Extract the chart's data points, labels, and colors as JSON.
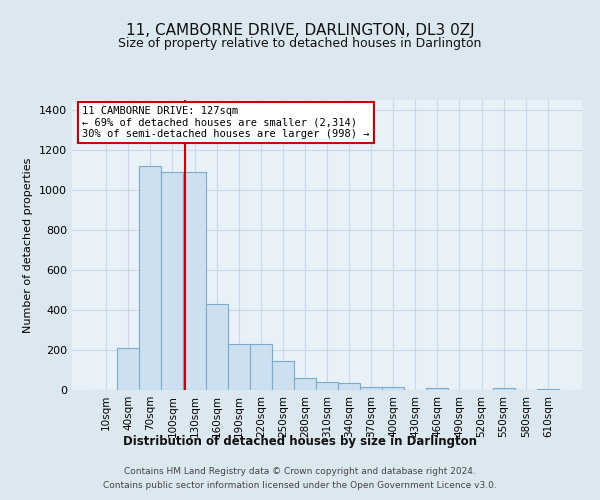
{
  "title": "11, CAMBORNE DRIVE, DARLINGTON, DL3 0ZJ",
  "subtitle": "Size of property relative to detached houses in Darlington",
  "xlabel": "Distribution of detached houses by size in Darlington",
  "ylabel": "Number of detached properties",
  "footer_line1": "Contains HM Land Registry data © Crown copyright and database right 2024.",
  "footer_line2": "Contains public sector information licensed under the Open Government Licence v3.0.",
  "bar_labels": [
    "10sqm",
    "40sqm",
    "70sqm",
    "100sqm",
    "130sqm",
    "160sqm",
    "190sqm",
    "220sqm",
    "250sqm",
    "280sqm",
    "310sqm",
    "340sqm",
    "370sqm",
    "400sqm",
    "430sqm",
    "460sqm",
    "490sqm",
    "520sqm",
    "550sqm",
    "580sqm",
    "610sqm"
  ],
  "bar_values": [
    0,
    208,
    1120,
    1090,
    1090,
    430,
    230,
    230,
    143,
    58,
    38,
    35,
    13,
    13,
    0,
    12,
    0,
    0,
    10,
    0,
    5
  ],
  "bar_color": "#cce0f0",
  "bar_edgecolor": "#7aabcc",
  "ylim": [
    0,
    1450
  ],
  "yticks": [
    0,
    200,
    400,
    600,
    800,
    1000,
    1200,
    1400
  ],
  "vline_x_data": 3.57,
  "annotation_text": "11 CAMBORNE DRIVE: 127sqm\n← 69% of detached houses are smaller (2,314)\n30% of semi-detached houses are larger (998) →",
  "annotation_box_color": "#ffffff",
  "annotation_box_edgecolor": "#cc0000",
  "vline_color": "#cc0000",
  "grid_color": "#c8d8e8",
  "background_color": "#dce8f0",
  "plot_bg_color": "#e8f0f8",
  "title_fontsize": 11,
  "subtitle_fontsize": 9
}
